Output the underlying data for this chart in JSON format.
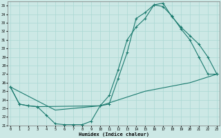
{
  "xlabel": "Humidex (Indice chaleur)",
  "background_color": "#cce8e5",
  "grid_color": "#aad8d3",
  "line_color": "#1a7a6e",
  "xlim": [
    -0.3,
    23.3
  ],
  "ylim": [
    21,
    35.5
  ],
  "xticks": [
    0,
    1,
    2,
    3,
    4,
    5,
    6,
    7,
    8,
    9,
    10,
    11,
    12,
    13,
    14,
    15,
    16,
    17,
    18,
    19,
    20,
    21,
    22,
    23
  ],
  "yticks": [
    21,
    22,
    23,
    24,
    25,
    26,
    27,
    28,
    29,
    30,
    31,
    32,
    33,
    34,
    35
  ],
  "line1_x": [
    0,
    1,
    2,
    3,
    4,
    5,
    6,
    7,
    8,
    9,
    10,
    11,
    12,
    13,
    14,
    15,
    16,
    17,
    18,
    19,
    20,
    21,
    22,
    23
  ],
  "line1_y": [
    25.5,
    23.5,
    23.3,
    23.2,
    22.2,
    21.2,
    21.1,
    21.1,
    21.1,
    21.5,
    23.3,
    23.5,
    26.5,
    29.5,
    33.5,
    34.2,
    35.1,
    34.9,
    33.8,
    32.3,
    31.0,
    29.0,
    27.0,
    27.0
  ],
  "line2_x": [
    0,
    1,
    2,
    3,
    10,
    11,
    12,
    13,
    14,
    15,
    16,
    17,
    18,
    19,
    20,
    21,
    22,
    23
  ],
  "line2_y": [
    25.5,
    23.5,
    23.3,
    23.2,
    23.3,
    24.5,
    27.5,
    31.0,
    32.5,
    33.5,
    35.1,
    35.3,
    33.7,
    32.5,
    31.5,
    30.5,
    29.0,
    27.0
  ],
  "line3_x": [
    0,
    5,
    10,
    15,
    20,
    23
  ],
  "line3_y": [
    25.5,
    22.8,
    23.3,
    25.0,
    26.0,
    27.0
  ]
}
